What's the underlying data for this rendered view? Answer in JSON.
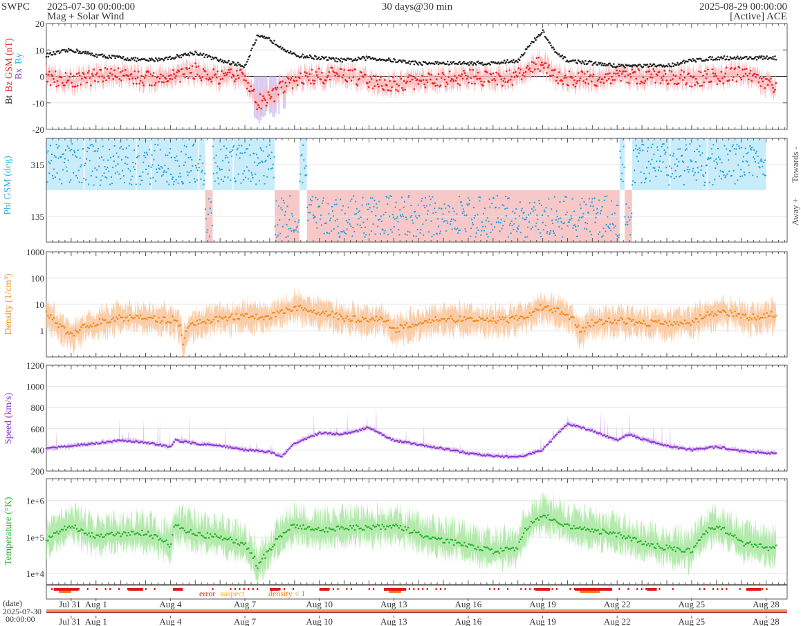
{
  "header": {
    "brand": "SWPC",
    "start": "2025-07-30 00:00:00",
    "subtitle": "Mag + Solar Wind",
    "center": "30 days@30 min",
    "end": "2025-08-29 00:00:00",
    "source": "[Active] ACE"
  },
  "colors": {
    "bt": "#222222",
    "bz": "#e8201c",
    "bx": "#8a3ccf",
    "by": "#27b2e6",
    "phi_toward": "#c9ecfa",
    "phi_away": "#f8c8c8",
    "phi_pts": "#1d9fe0",
    "density": "#f08a1c",
    "density_band": "#f8c49a",
    "speed": "#8a38d2",
    "speed_band": "#d8b4f2",
    "temp": "#2bb52b",
    "temp_band": "#a8e6a0",
    "error": "#e01a1a",
    "suspect": "#f2b118",
    "density_lt1": "#f07818"
  },
  "legend": {
    "error": "error",
    "suspect": "suspect",
    "density": "density < 1"
  },
  "footer": {
    "date_label": "(date)",
    "date": "2025-07-30",
    "time": "00:00:00"
  },
  "chart_data": [
    {
      "type": "line",
      "title": "Mag",
      "ylabel_parts": [
        "Bt",
        "Bz GSM (nT)",
        "Bx",
        "By"
      ],
      "ylim": [
        -20,
        20
      ],
      "yticks": [
        "20",
        "10",
        "0",
        "-10",
        "-20"
      ],
      "x_days": [
        0,
        1,
        2,
        3,
        4,
        5,
        6,
        7,
        7.5,
        8,
        8.5,
        9,
        10,
        11,
        12,
        13,
        14,
        15,
        16,
        17,
        18,
        19,
        19.5,
        20,
        20.5,
        21,
        22,
        23,
        24,
        25,
        26,
        27,
        28,
        29
      ],
      "series": [
        {
          "name": "Bt",
          "values": [
            8,
            10,
            8,
            7,
            6,
            7,
            9,
            6,
            5,
            4,
            15,
            14,
            8,
            7,
            6,
            7,
            6,
            5,
            5,
            5,
            5,
            6,
            12,
            17,
            9,
            6,
            5,
            4,
            4,
            4,
            6,
            7,
            7,
            7
          ]
        },
        {
          "name": "Bz GSM",
          "values": [
            0,
            -2,
            0,
            1,
            -1,
            0,
            2,
            -1,
            0,
            0,
            -10,
            -8,
            -1,
            0,
            1,
            -2,
            -3,
            -2,
            -1,
            0,
            -1,
            0,
            3,
            5,
            0,
            -1,
            -1,
            0,
            0,
            0,
            -1,
            0,
            1,
            -3
          ]
        }
      ]
    },
    {
      "type": "scatter",
      "title": "Phi",
      "ylabel": "Phi GSM (deg)",
      "yticks": [
        "315",
        "135"
      ],
      "right_labels": [
        "Towards -",
        "Away +"
      ],
      "sectors": [
        {
          "from": 0,
          "to": 6.4,
          "sector": "towards"
        },
        {
          "from": 6.4,
          "to": 6.7,
          "sector": "away"
        },
        {
          "from": 6.7,
          "to": 9.2,
          "sector": "towards"
        },
        {
          "from": 9.2,
          "to": 10.2,
          "sector": "away"
        },
        {
          "from": 10.2,
          "to": 10.5,
          "sector": "towards"
        },
        {
          "from": 10.5,
          "to": 23.1,
          "sector": "away"
        },
        {
          "from": 23.1,
          "to": 23.3,
          "sector": "towards"
        },
        {
          "from": 23.3,
          "to": 23.6,
          "sector": "away"
        },
        {
          "from": 23.6,
          "to": 29,
          "sector": "towards"
        }
      ]
    },
    {
      "type": "line",
      "title": "Density",
      "ylabel": "Density (1/cm³)",
      "scale": "log",
      "ylim": [
        0.1,
        1000
      ],
      "yticks": [
        "1000",
        "100",
        "10",
        "1"
      ],
      "x_days": [
        0,
        0.5,
        1,
        2,
        3,
        4,
        5,
        5.2,
        5.5,
        6,
        7,
        8,
        8.7,
        9,
        10,
        11,
        12,
        13,
        13.5,
        14,
        15,
        16,
        17,
        18,
        18.5,
        19,
        19.5,
        20,
        21,
        21.5,
        22,
        23,
        24,
        25,
        26,
        27,
        28,
        28.3,
        29
      ],
      "values": [
        4,
        1.5,
        0.6,
        2,
        3,
        3,
        2.5,
        3,
        0.3,
        2,
        3,
        3.5,
        3.5,
        3,
        8,
        5,
        3,
        2.5,
        3,
        1,
        2,
        3,
        2.5,
        2.5,
        2.5,
        3,
        4,
        8,
        4,
        0.8,
        2,
        2.5,
        2,
        2,
        2,
        5,
        4,
        3,
        4
      ]
    },
    {
      "type": "line",
      "title": "Speed",
      "ylabel": "Speed (km/s)",
      "ylim": [
        200,
        1200
      ],
      "yticks": [
        "1200",
        "1000",
        "800",
        "600",
        "400",
        "200"
      ],
      "x_days": [
        0,
        1,
        2,
        3,
        4,
        5,
        5.2,
        6,
        7,
        8,
        9,
        9.5,
        10,
        11,
        12,
        13,
        14,
        15,
        16,
        17,
        18,
        19,
        20,
        21,
        22,
        23,
        23.5,
        24,
        25,
        26,
        27,
        28,
        29
      ],
      "values": [
        410,
        440,
        460,
        490,
        470,
        430,
        490,
        460,
        440,
        400,
        380,
        340,
        460,
        560,
        550,
        610,
        490,
        450,
        410,
        370,
        340,
        330,
        400,
        650,
        580,
        490,
        550,
        500,
        440,
        400,
        430,
        390,
        370
      ]
    },
    {
      "type": "line",
      "title": "Temperature",
      "ylabel": "Temperature (°K)",
      "scale": "log",
      "ylim": [
        5000,
        4000000
      ],
      "yticks": [
        "1e+6",
        "1e+5",
        "1e+4"
      ],
      "x_days": [
        0,
        1,
        2,
        3,
        4,
        5,
        5.2,
        6,
        7,
        8,
        8.5,
        9,
        10,
        11,
        12,
        13,
        14,
        15,
        16,
        17,
        18,
        19,
        20,
        21,
        22,
        23,
        24,
        25,
        26,
        27,
        28,
        29
      ],
      "values": [
        80000,
        200000,
        100000,
        120000,
        130000,
        60000,
        200000,
        120000,
        100000,
        60000,
        15000,
        40000,
        200000,
        150000,
        180000,
        180000,
        200000,
        120000,
        80000,
        60000,
        40000,
        50000,
        400000,
        200000,
        150000,
        120000,
        70000,
        50000,
        40000,
        200000,
        70000,
        50000
      ]
    }
  ],
  "timeline": {
    "start": "2025-07-30",
    "end": "2025-08-29",
    "ticks": [
      {
        "day": 1,
        "label": "Jul 31"
      },
      {
        "day": 2,
        "label": "Aug 1"
      },
      {
        "day": 5,
        "label": "Aug 4"
      },
      {
        "day": 8,
        "label": "Aug 7"
      },
      {
        "day": 11,
        "label": "Aug 10"
      },
      {
        "day": 14,
        "label": "Aug 13"
      },
      {
        "day": 17,
        "label": "Aug 16"
      },
      {
        "day": 20,
        "label": "Aug 19"
      },
      {
        "day": 23,
        "label": "Aug 22"
      },
      {
        "day": 26,
        "label": "Aug 25"
      },
      {
        "day": 29,
        "label": "Aug 28"
      }
    ]
  }
}
